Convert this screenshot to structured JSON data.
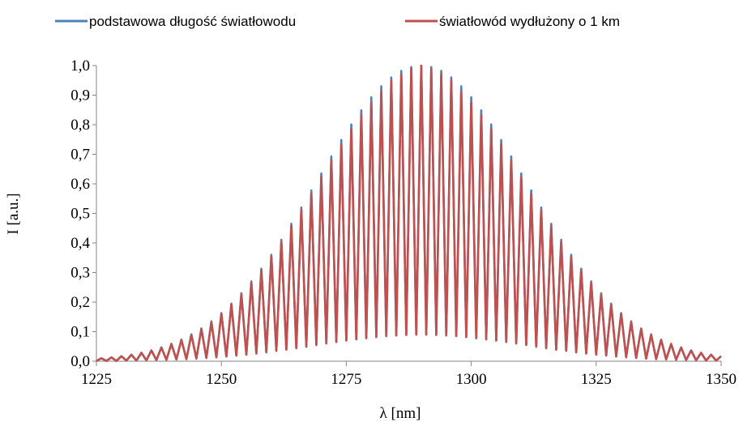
{
  "chart_data": {
    "type": "line",
    "xlabel": "λ [nm]",
    "ylabel": "I [a.u.]",
    "legend": "top",
    "x": [
      1225,
      1226,
      1227,
      1228,
      1229,
      1230,
      1231,
      1232,
      1233,
      1234,
      1235,
      1236,
      1237,
      1238,
      1239,
      1240,
      1241,
      1242,
      1243,
      1244,
      1245,
      1246,
      1247,
      1248,
      1249,
      1250,
      1251,
      1252,
      1253,
      1254,
      1255,
      1256,
      1257,
      1258,
      1259,
      1260,
      1261,
      1262,
      1263,
      1264,
      1265,
      1266,
      1267,
      1268,
      1269,
      1270,
      1271,
      1272,
      1273,
      1274,
      1275,
      1276,
      1277,
      1278,
      1279,
      1280,
      1281,
      1282,
      1283,
      1284,
      1285,
      1286,
      1287,
      1288,
      1289,
      1290,
      1291,
      1292,
      1293,
      1294,
      1295,
      1296,
      1297,
      1298,
      1299,
      1300,
      1301,
      1302,
      1303,
      1304,
      1305,
      1306,
      1307,
      1308,
      1309,
      1310,
      1311,
      1312,
      1313,
      1314,
      1315,
      1316,
      1317,
      1318,
      1319,
      1320,
      1321,
      1322,
      1323,
      1324,
      1325,
      1326,
      1327,
      1328,
      1329,
      1330,
      1331,
      1332,
      1333,
      1334,
      1335,
      1336,
      1337,
      1338,
      1339,
      1340,
      1341,
      1342,
      1343,
      1344,
      1345,
      1346,
      1347,
      1348,
      1349,
      1350
    ],
    "series": [
      {
        "name": "podstawowa długość światłowodu",
        "color": "#4f81bd",
        "values": [
          0.001,
          0.01,
          0.001,
          0.013,
          0.001,
          0.017,
          0.002,
          0.022,
          0.002,
          0.029,
          0.003,
          0.037,
          0.004,
          0.047,
          0.005,
          0.059,
          0.006,
          0.073,
          0.007,
          0.091,
          0.009,
          0.111,
          0.011,
          0.135,
          0.013,
          0.163,
          0.016,
          0.195,
          0.019,
          0.23,
          0.022,
          0.27,
          0.026,
          0.313,
          0.03,
          0.36,
          0.035,
          0.411,
          0.039,
          0.465,
          0.044,
          0.52,
          0.049,
          0.578,
          0.055,
          0.635,
          0.06,
          0.693,
          0.065,
          0.748,
          0.07,
          0.801,
          0.074,
          0.849,
          0.078,
          0.893,
          0.082,
          0.93,
          0.085,
          0.96,
          0.087,
          0.982,
          0.089,
          0.995,
          0.09,
          1.0,
          0.09,
          0.995,
          0.089,
          0.982,
          0.087,
          0.96,
          0.085,
          0.93,
          0.082,
          0.893,
          0.078,
          0.849,
          0.074,
          0.801,
          0.07,
          0.748,
          0.065,
          0.693,
          0.06,
          0.635,
          0.055,
          0.578,
          0.049,
          0.52,
          0.044,
          0.465,
          0.039,
          0.411,
          0.035,
          0.36,
          0.03,
          0.313,
          0.026,
          0.27,
          0.022,
          0.23,
          0.019,
          0.195,
          0.016,
          0.163,
          0.013,
          0.135,
          0.011,
          0.111,
          0.009,
          0.091,
          0.007,
          0.073,
          0.006,
          0.059,
          0.005,
          0.047,
          0.004,
          0.037,
          0.003,
          0.029,
          0.002,
          0.022,
          0.002,
          0.017
        ]
      },
      {
        "name": "światłowód wydłużony o 1 km",
        "color": "#c0504d",
        "values": [
          0.001,
          0.01,
          0.001,
          0.013,
          0.001,
          0.017,
          0.002,
          0.022,
          0.002,
          0.028,
          0.003,
          0.036,
          0.004,
          0.046,
          0.005,
          0.058,
          0.006,
          0.072,
          0.007,
          0.089,
          0.009,
          0.109,
          0.011,
          0.132,
          0.013,
          0.16,
          0.016,
          0.191,
          0.019,
          0.225,
          0.022,
          0.265,
          0.026,
          0.307,
          0.03,
          0.353,
          0.035,
          0.403,
          0.039,
          0.456,
          0.044,
          0.51,
          0.049,
          0.566,
          0.055,
          0.622,
          0.06,
          0.679,
          0.065,
          0.733,
          0.07,
          0.785,
          0.074,
          0.832,
          0.078,
          0.875,
          0.082,
          0.911,
          0.085,
          0.95,
          0.087,
          0.97,
          0.089,
          0.99,
          0.09,
          1.0,
          0.09,
          0.99,
          0.089,
          0.97,
          0.087,
          0.95,
          0.085,
          0.911,
          0.082,
          0.875,
          0.078,
          0.832,
          0.074,
          0.785,
          0.07,
          0.733,
          0.065,
          0.679,
          0.06,
          0.622,
          0.055,
          0.566,
          0.049,
          0.51,
          0.044,
          0.456,
          0.039,
          0.403,
          0.035,
          0.353,
          0.03,
          0.307,
          0.026,
          0.265,
          0.022,
          0.225,
          0.019,
          0.191,
          0.016,
          0.16,
          0.013,
          0.132,
          0.011,
          0.109,
          0.009,
          0.089,
          0.007,
          0.072,
          0.006,
          0.058,
          0.005,
          0.046,
          0.004,
          0.036,
          0.003,
          0.028,
          0.002,
          0.022,
          0.002,
          0.017
        ]
      }
    ],
    "xlim": [
      1225,
      1350
    ],
    "xticks": [
      1225,
      1250,
      1275,
      1300,
      1325,
      1350
    ],
    "ylim": [
      0,
      1
    ],
    "yticks": [
      {
        "value": 0,
        "label": "0,0"
      },
      {
        "value": 0.1,
        "label": "0,1"
      },
      {
        "value": 0.2,
        "label": "0,2"
      },
      {
        "value": 0.3,
        "label": "0,3"
      },
      {
        "value": 0.4,
        "label": "0,4"
      },
      {
        "value": 0.5,
        "label": "0,5"
      },
      {
        "value": 0.6,
        "label": "0,6"
      },
      {
        "value": 0.7,
        "label": "0,7"
      },
      {
        "value": 0.8,
        "label": "0,8"
      },
      {
        "value": 0.9,
        "label": "0,9"
      },
      {
        "value": 1,
        "label": "1,0"
      }
    ],
    "grid": false
  }
}
